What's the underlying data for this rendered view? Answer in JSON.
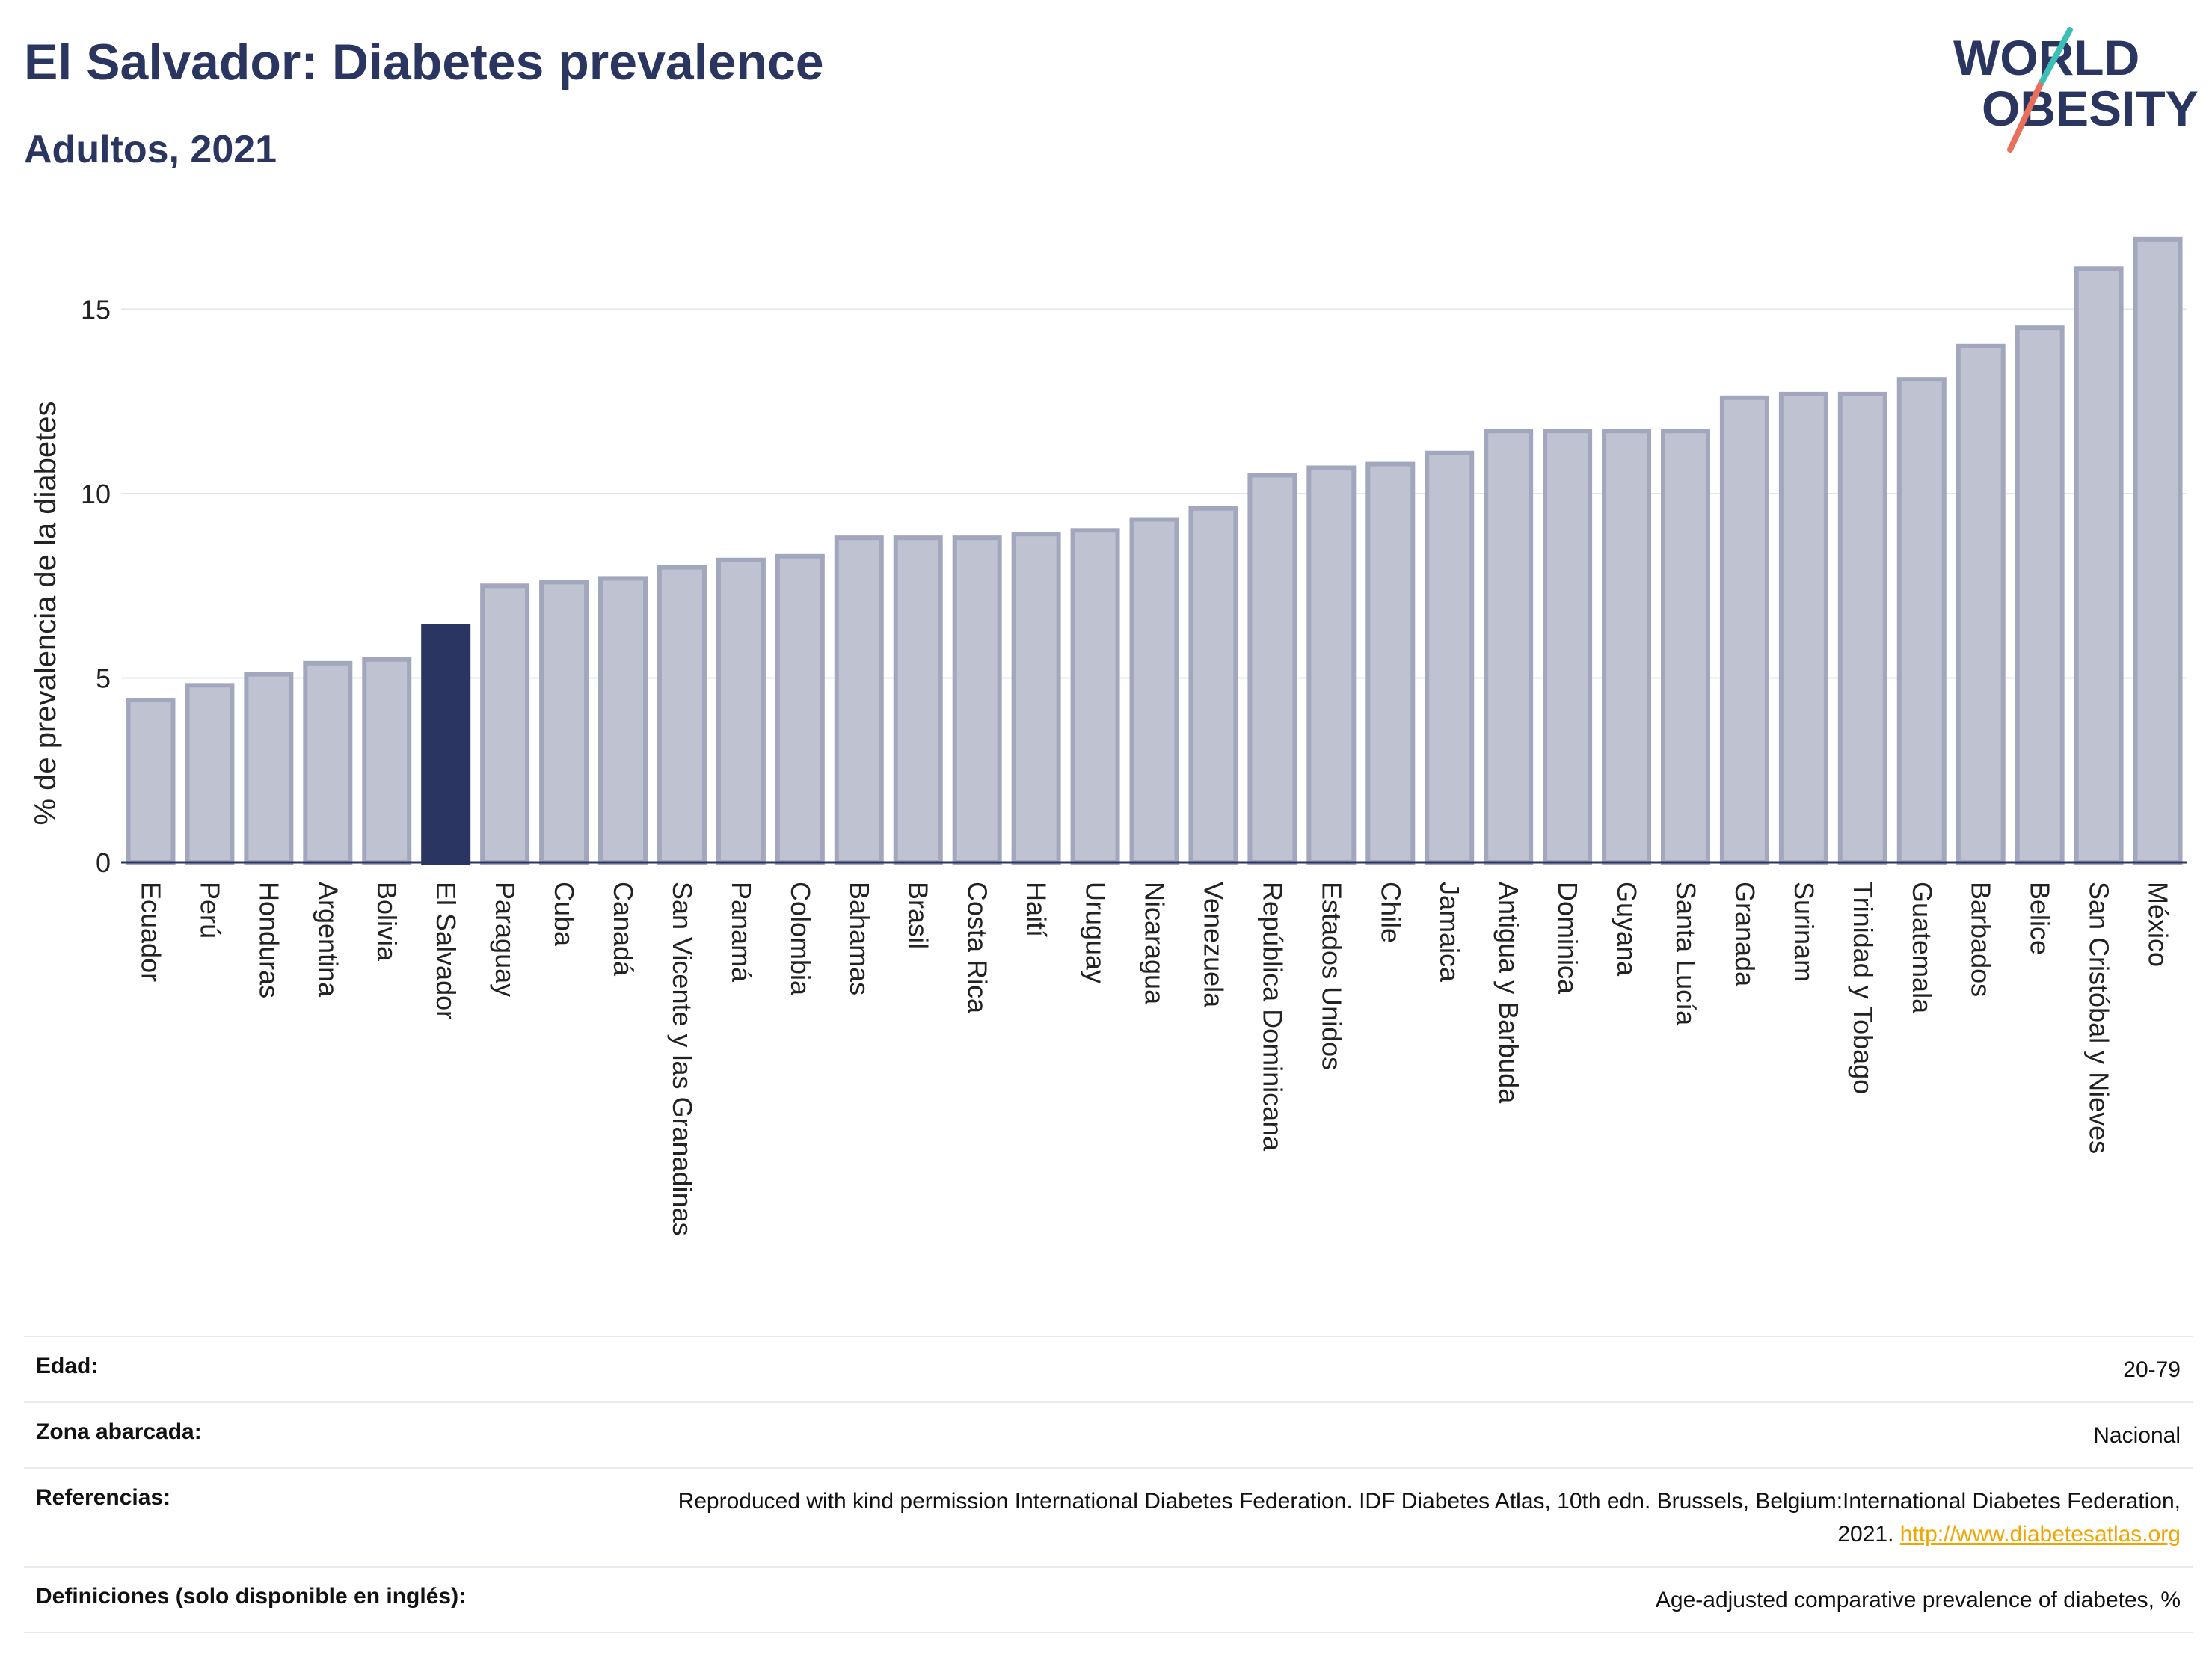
{
  "header": {
    "title": "El Salvador: Diabetes prevalence",
    "subtitle": "Adultos, 2021",
    "logo": {
      "line1": "WORLD",
      "line2": "OBESITY"
    }
  },
  "colors": {
    "highlight": "#2b3561",
    "bar_fill": "#bec2d1",
    "bar_stroke": "#a2a7bd",
    "title": "#2a3560",
    "link": "#f0a500",
    "logo_teal": "#3dbfb8",
    "logo_coral": "#e8705a"
  },
  "chart_data": {
    "type": "bar",
    "title": "El Salvador: Diabetes prevalence",
    "subtitle": "Adultos, 2021",
    "xlabel": "",
    "ylabel": "% de prevalencia de la diabetes",
    "ylim": [
      0,
      17
    ],
    "yticks": [
      0,
      5,
      10,
      15
    ],
    "grid": true,
    "highlight": "El Salvador",
    "categories": [
      "Ecuador",
      "Perú",
      "Honduras",
      "Argentina",
      "Bolivia",
      "El Salvador",
      "Paraguay",
      "Cuba",
      "Canadá",
      "San Vicente y las Granadinas",
      "Panamá",
      "Colombia",
      "Bahamas",
      "Brasil",
      "Costa Rica",
      "Haití",
      "Uruguay",
      "Nicaragua",
      "Venezuela",
      "República Dominicana",
      "Estados Unidos",
      "Chile",
      "Jamaica",
      "Antigua y Barbuda",
      "Dominica",
      "Guyana",
      "Santa Lucía",
      "Granada",
      "Surinam",
      "Trinidad y Tobago",
      "Guatemala",
      "Barbados",
      "Belice",
      "San Cristóbal y Nieves",
      "México"
    ],
    "values": [
      4.4,
      4.8,
      5.1,
      5.4,
      5.5,
      6.4,
      7.5,
      7.6,
      7.7,
      8.0,
      8.2,
      8.3,
      8.8,
      8.8,
      8.8,
      8.9,
      9.0,
      9.3,
      9.6,
      10.5,
      10.7,
      10.8,
      11.1,
      11.7,
      11.7,
      11.7,
      11.7,
      12.6,
      12.7,
      12.7,
      13.1,
      14.0,
      14.5,
      16.1,
      16.9
    ]
  },
  "info": [
    {
      "label": "Edad:",
      "value": "20-79"
    },
    {
      "label": "Zona abarcada:",
      "value": "Nacional"
    },
    {
      "label": "Referencias:",
      "value": "Reproduced with kind permission International Diabetes Federation.  IDF Diabetes Atlas, 10th edn. Brussels, Belgium:International Diabetes Federation, 2021.",
      "link": "http://www.diabetesatlas.org"
    },
    {
      "label": "Definiciones (solo disponible en inglés):",
      "value": "Age-adjusted comparative prevalence of diabetes, %"
    }
  ]
}
